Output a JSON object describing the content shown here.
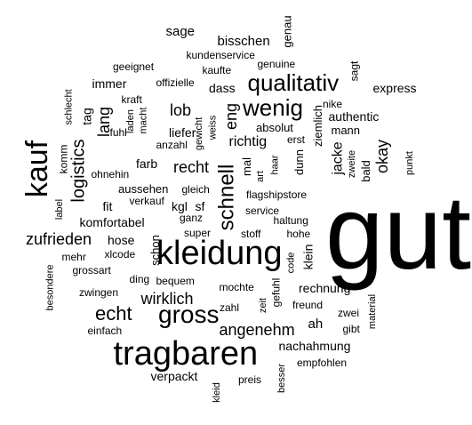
{
  "words": [
    {
      "text": "gut",
      "weight": 10
    },
    {
      "text": "kleidung",
      "weight": 6
    },
    {
      "text": "tragbaren",
      "weight": 6
    },
    {
      "text": "kauf",
      "weight": 5
    },
    {
      "text": "gross",
      "weight": 5
    },
    {
      "text": "wenig",
      "weight": 5
    },
    {
      "text": "qualitativ",
      "weight": 5
    },
    {
      "text": "schnell",
      "weight": 4
    },
    {
      "text": "echt",
      "weight": 4
    },
    {
      "text": "logistics",
      "weight": 3
    },
    {
      "text": "lang",
      "weight": 3
    },
    {
      "text": "okay",
      "weight": 3
    },
    {
      "text": "zufrieden",
      "weight": 3
    },
    {
      "text": "wirklich",
      "weight": 3
    },
    {
      "text": "angenehm",
      "weight": 3
    },
    {
      "text": "lob",
      "weight": 3
    },
    {
      "text": "eng",
      "weight": 3
    },
    {
      "text": "recht",
      "weight": 3
    },
    {
      "text": "richtig",
      "weight": 3
    },
    {
      "text": "bisschen",
      "weight": 2
    },
    {
      "text": "sage",
      "weight": 2
    },
    {
      "text": "genau",
      "weight": 2
    },
    {
      "text": "sagt",
      "weight": 2
    },
    {
      "text": "kundenservice",
      "weight": 1
    },
    {
      "text": "geeignet",
      "weight": 1
    },
    {
      "text": "kaufte",
      "weight": 1
    },
    {
      "text": "genuine",
      "weight": 1
    },
    {
      "text": "nike",
      "weight": 1
    },
    {
      "text": "express",
      "weight": 2
    },
    {
      "text": "immer",
      "weight": 2
    },
    {
      "text": "offizielle",
      "weight": 1
    },
    {
      "text": "dass",
      "weight": 2
    },
    {
      "text": "authentic",
      "weight": 2
    },
    {
      "text": "kraft",
      "weight": 1
    },
    {
      "text": "schlecht",
      "weight": 1
    },
    {
      "text": "tag",
      "weight": 2
    },
    {
      "text": "laden",
      "weight": 1
    },
    {
      "text": "macht",
      "weight": 1
    },
    {
      "text": "liefer",
      "weight": 2
    },
    {
      "text": "gewicht",
      "weight": 1
    },
    {
      "text": "weiss",
      "weight": 1
    },
    {
      "text": "absolut",
      "weight": 2
    },
    {
      "text": "ziemlich",
      "weight": 2
    },
    {
      "text": "mann",
      "weight": 2
    },
    {
      "text": "fuhl",
      "weight": 1
    },
    {
      "text": "anzahl",
      "weight": 1
    },
    {
      "text": "komm",
      "weight": 2
    },
    {
      "text": "mal",
      "weight": 2
    },
    {
      "text": "erst",
      "weight": 1
    },
    {
      "text": "jacke",
      "weight": 2
    },
    {
      "text": "zweite",
      "weight": 1
    },
    {
      "text": "bald",
      "weight": 2
    },
    {
      "text": "farb",
      "weight": 2
    },
    {
      "text": "ohnehin",
      "weight": 1
    },
    {
      "text": "art",
      "weight": 1
    },
    {
      "text": "haar",
      "weight": 1
    },
    {
      "text": "dunn",
      "weight": 2
    },
    {
      "text": "punkt",
      "weight": 1
    },
    {
      "text": "aussehen",
      "weight": 2
    },
    {
      "text": "gleich",
      "weight": 1
    },
    {
      "text": "fit",
      "weight": 2
    },
    {
      "text": "verkauf",
      "weight": 1
    },
    {
      "text": "flagshipstore",
      "weight": 1
    },
    {
      "text": "kgl",
      "weight": 2
    },
    {
      "text": "sf",
      "weight": 2
    },
    {
      "text": "label",
      "weight": 1
    },
    {
      "text": "komfortabel",
      "weight": 2
    },
    {
      "text": "ganz",
      "weight": 1
    },
    {
      "text": "service",
      "weight": 1
    },
    {
      "text": "haltung",
      "weight": 1
    },
    {
      "text": "super",
      "weight": 1
    },
    {
      "text": "stoff",
      "weight": 1
    },
    {
      "text": "hohe",
      "weight": 1
    },
    {
      "text": "hose",
      "weight": 2
    },
    {
      "text": "mehr",
      "weight": 1
    },
    {
      "text": "xlcode",
      "weight": 1
    },
    {
      "text": "schon",
      "weight": 2
    },
    {
      "text": "klein",
      "weight": 2
    },
    {
      "text": "code",
      "weight": 1
    },
    {
      "text": "grossart",
      "weight": 1
    },
    {
      "text": "besondere",
      "weight": 1
    },
    {
      "text": "ding",
      "weight": 1
    },
    {
      "text": "bequem",
      "weight": 1
    },
    {
      "text": "zwingen",
      "weight": 1
    },
    {
      "text": "gefuhl",
      "weight": 1
    },
    {
      "text": "rechnung",
      "weight": 2
    },
    {
      "text": "mochte",
      "weight": 1
    },
    {
      "text": "zahl",
      "weight": 1
    },
    {
      "text": "zeit",
      "weight": 1
    },
    {
      "text": "freund",
      "weight": 1
    },
    {
      "text": "einfach",
      "weight": 1
    },
    {
      "text": "ah",
      "weight": 2
    },
    {
      "text": "zwei",
      "weight": 1
    },
    {
      "text": "material",
      "weight": 1
    },
    {
      "text": "gibt",
      "weight": 1
    },
    {
      "text": "nachahmung",
      "weight": 2
    },
    {
      "text": "empfohlen",
      "weight": 1
    },
    {
      "text": "verpackt",
      "weight": 2
    },
    {
      "text": "preis",
      "weight": 1
    },
    {
      "text": "besser",
      "weight": 1
    },
    {
      "text": "kleid",
      "weight": 1
    }
  ]
}
